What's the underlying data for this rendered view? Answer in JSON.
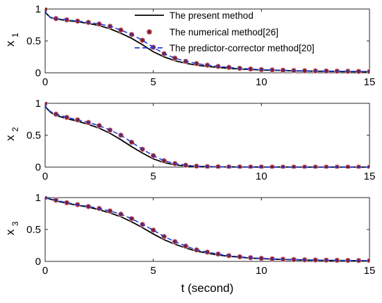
{
  "chart_data": [
    {
      "type": "line",
      "ylabel": "x",
      "ylabel_sub": "1",
      "xlim": [
        0,
        15
      ],
      "ylim": [
        0,
        1
      ],
      "xticks": [
        "0",
        "5",
        "10",
        "15"
      ],
      "yticks": [
        "0",
        "0.5",
        "1"
      ],
      "legend": {
        "placement": "top-right",
        "entries": [
          "The present method",
          "The numerical method[26]",
          "The predictor-corrector method[20]"
        ]
      },
      "series": [
        {
          "name": "The present method",
          "color": "#000000",
          "x": [
            0,
            0.05,
            0.25,
            0.5,
            1,
            1.5,
            2,
            2.5,
            3,
            3.5,
            4,
            4.5,
            5,
            5.5,
            6,
            6.5,
            7,
            7.5,
            8,
            8.5,
            9,
            9.5,
            10,
            10.5,
            11,
            11.5,
            12,
            12.5,
            13,
            13.5,
            14,
            14.5,
            15
          ],
          "y": [
            1.0,
            0.93,
            0.865,
            0.845,
            0.82,
            0.8,
            0.775,
            0.74,
            0.69,
            0.62,
            0.54,
            0.44,
            0.33,
            0.25,
            0.19,
            0.15,
            0.12,
            0.1,
            0.085,
            0.07,
            0.06,
            0.05,
            0.045,
            0.04,
            0.035,
            0.03,
            0.027,
            0.025,
            0.022,
            0.02,
            0.018,
            0.017,
            0.016
          ]
        },
        {
          "name": "The numerical method[26]",
          "color": "#8b1a1a",
          "x": [
            0,
            0.5,
            1,
            1.5,
            2,
            2.5,
            3,
            3.5,
            4,
            4.5,
            5,
            5.5,
            6,
            6.5,
            7,
            7.5,
            8,
            8.5,
            9,
            9.5,
            10,
            10.5,
            11,
            11.5,
            12,
            12.5,
            13,
            13.5,
            14,
            14.5,
            15
          ],
          "y": [
            1.0,
            0.85,
            0.83,
            0.81,
            0.79,
            0.765,
            0.73,
            0.67,
            0.6,
            0.51,
            0.4,
            0.3,
            0.23,
            0.18,
            0.145,
            0.12,
            0.1,
            0.085,
            0.07,
            0.06,
            0.05,
            0.045,
            0.04,
            0.035,
            0.032,
            0.03,
            0.028,
            0.026,
            0.024,
            0.022,
            0.02
          ]
        },
        {
          "name": "The predictor-corrector method[20]",
          "color": "#1f3fd6",
          "x": [
            0,
            0.05,
            0.25,
            0.5,
            1,
            1.5,
            2,
            2.5,
            3,
            3.5,
            4,
            4.5,
            5,
            5.5,
            6,
            6.5,
            7,
            7.5,
            8,
            8.5,
            9,
            9.5,
            10,
            10.5,
            11,
            11.5,
            12,
            12.5,
            13,
            13.5,
            14,
            14.5,
            15
          ],
          "y": [
            1.0,
            0.93,
            0.87,
            0.85,
            0.83,
            0.81,
            0.79,
            0.765,
            0.73,
            0.67,
            0.6,
            0.51,
            0.4,
            0.3,
            0.23,
            0.18,
            0.145,
            0.12,
            0.1,
            0.085,
            0.07,
            0.06,
            0.05,
            0.045,
            0.04,
            0.035,
            0.032,
            0.03,
            0.028,
            0.026,
            0.024,
            0.022,
            0.02
          ]
        }
      ]
    },
    {
      "type": "line",
      "ylabel": "x",
      "ylabel_sub": "2",
      "xlim": [
        0,
        15
      ],
      "ylim": [
        0,
        1
      ],
      "xticks": [
        "0",
        "5",
        "10",
        "15"
      ],
      "yticks": [
        "0",
        "0.5",
        "1"
      ],
      "series": [
        {
          "name": "The present method",
          "color": "#000000",
          "x": [
            0,
            0.05,
            0.25,
            0.5,
            1,
            1.5,
            2,
            2.5,
            3,
            3.5,
            4,
            4.5,
            5,
            5.5,
            6,
            6.5,
            7,
            7.5,
            8,
            8.5,
            9,
            10,
            11,
            12,
            13,
            14,
            15
          ],
          "y": [
            1.0,
            0.93,
            0.86,
            0.81,
            0.76,
            0.72,
            0.67,
            0.61,
            0.53,
            0.43,
            0.32,
            0.22,
            0.13,
            0.07,
            0.035,
            0.018,
            0.01,
            0.006,
            0.004,
            0.003,
            0.002,
            0.001,
            0.001,
            0.0,
            0.0,
            0.0,
            0.0
          ]
        },
        {
          "name": "The numerical method[26]",
          "color": "#8b1a1a",
          "x": [
            0,
            0.5,
            1,
            1.5,
            2,
            2.5,
            3,
            3.5,
            4,
            4.5,
            5,
            5.5,
            6,
            6.5,
            7,
            7.5,
            8,
            8.5,
            9,
            9.5,
            10,
            10.5,
            11,
            11.5,
            12,
            12.5,
            13,
            13.5,
            14,
            14.5,
            15
          ],
          "y": [
            1.0,
            0.83,
            0.78,
            0.74,
            0.7,
            0.65,
            0.58,
            0.5,
            0.39,
            0.28,
            0.18,
            0.1,
            0.055,
            0.03,
            0.015,
            0.008,
            0.005,
            0.003,
            0.002,
            0.001,
            0.001,
            0.0,
            0.0,
            0.0,
            0.0,
            0.0,
            0.0,
            0.0,
            0.0,
            0.0,
            0.0
          ]
        },
        {
          "name": "The predictor-corrector method[20]",
          "color": "#1f3fd6",
          "x": [
            0,
            0.05,
            0.25,
            0.5,
            1,
            1.5,
            2,
            2.5,
            3,
            3.5,
            4,
            4.5,
            5,
            5.5,
            6,
            6.5,
            7,
            7.5,
            8,
            8.5,
            9,
            10,
            11,
            12,
            13,
            14,
            15
          ],
          "y": [
            1.0,
            0.93,
            0.87,
            0.83,
            0.78,
            0.74,
            0.7,
            0.65,
            0.58,
            0.5,
            0.39,
            0.28,
            0.18,
            0.1,
            0.055,
            0.03,
            0.015,
            0.008,
            0.005,
            0.003,
            0.002,
            0.001,
            0.0,
            0.0,
            0.0,
            0.0,
            0.0
          ]
        }
      ]
    },
    {
      "type": "line",
      "ylabel": "x",
      "ylabel_sub": "3",
      "xlabel": "t (second)",
      "xlim": [
        0,
        15
      ],
      "ylim": [
        0,
        1
      ],
      "xticks": [
        "0",
        "5",
        "10",
        "15"
      ],
      "yticks": [
        "0",
        "0.5",
        "1"
      ],
      "series": [
        {
          "name": "The present method",
          "color": "#000000",
          "x": [
            0,
            0.5,
            1,
            1.5,
            2,
            2.5,
            3,
            3.5,
            4,
            4.5,
            5,
            5.5,
            6,
            6.5,
            7,
            7.5,
            8,
            8.5,
            9,
            9.5,
            10,
            10.5,
            11,
            11.5,
            12,
            12.5,
            13,
            13.5,
            14,
            14.5,
            15
          ],
          "y": [
            1.0,
            0.95,
            0.91,
            0.88,
            0.85,
            0.81,
            0.76,
            0.7,
            0.62,
            0.53,
            0.43,
            0.34,
            0.27,
            0.21,
            0.16,
            0.13,
            0.1,
            0.08,
            0.065,
            0.052,
            0.043,
            0.036,
            0.03,
            0.025,
            0.021,
            0.018,
            0.015,
            0.013,
            0.011,
            0.01,
            0.009
          ]
        },
        {
          "name": "The numerical method[26]",
          "color": "#8b1a1a",
          "x": [
            0,
            0.5,
            1,
            1.5,
            2,
            2.5,
            3,
            3.5,
            4,
            4.5,
            5,
            5.5,
            6,
            6.5,
            7,
            7.5,
            8,
            8.5,
            9,
            9.5,
            10,
            10.5,
            11,
            11.5,
            12,
            12.5,
            13,
            13.5,
            14,
            14.5,
            15
          ],
          "y": [
            1.0,
            0.96,
            0.92,
            0.89,
            0.86,
            0.83,
            0.79,
            0.74,
            0.67,
            0.58,
            0.49,
            0.39,
            0.31,
            0.24,
            0.18,
            0.145,
            0.115,
            0.09,
            0.072,
            0.058,
            0.048,
            0.04,
            0.034,
            0.029,
            0.025,
            0.022,
            0.019,
            0.017,
            0.015,
            0.013,
            0.012
          ]
        },
        {
          "name": "The predictor-corrector method[20]",
          "color": "#1f3fd6",
          "x": [
            0,
            0.5,
            1,
            1.5,
            2,
            2.5,
            3,
            3.5,
            4,
            4.5,
            5,
            5.5,
            6,
            6.5,
            7,
            7.5,
            8,
            8.5,
            9,
            9.5,
            10,
            10.5,
            11,
            11.5,
            12,
            12.5,
            13,
            13.5,
            14,
            14.5,
            15
          ],
          "y": [
            1.0,
            0.96,
            0.92,
            0.89,
            0.86,
            0.83,
            0.79,
            0.74,
            0.67,
            0.58,
            0.49,
            0.39,
            0.31,
            0.24,
            0.18,
            0.145,
            0.115,
            0.09,
            0.072,
            0.058,
            0.048,
            0.04,
            0.034,
            0.029,
            0.025,
            0.022,
            0.019,
            0.017,
            0.015,
            0.013,
            0.012
          ]
        }
      ]
    }
  ]
}
